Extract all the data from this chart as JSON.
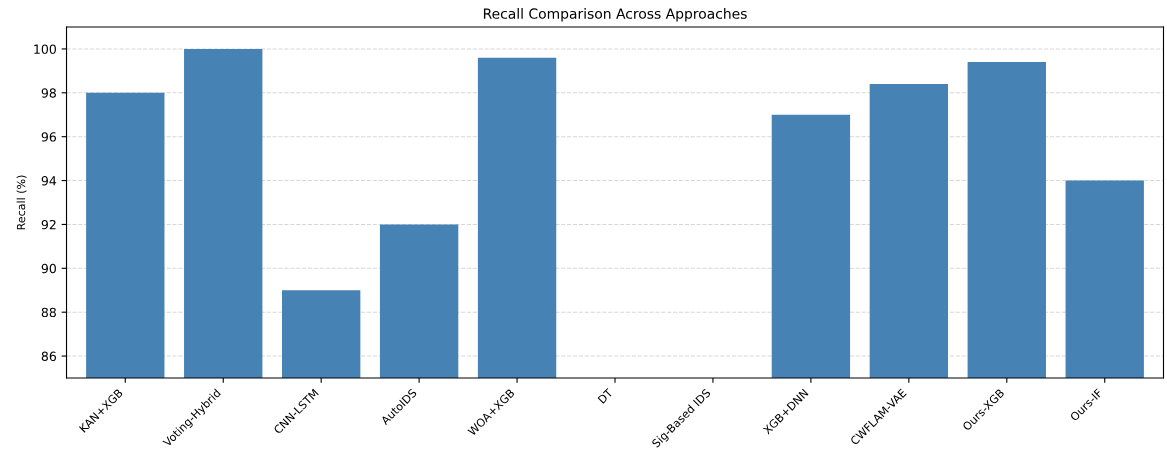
{
  "chart_data": {
    "type": "bar",
    "title": "Recall Comparison Across Approaches",
    "ylabel": "Recall (%)",
    "categories": [
      "KAN+XGB",
      "Voting-Hybrid",
      "CNN-LSTM",
      "AutoIDS",
      "WOA+XGB",
      "DT",
      "Sig-Based IDS",
      "XGB+DNN",
      "CWFLAM-VAE",
      "Ours-XGB",
      "Ours-IF"
    ],
    "values": [
      98,
      100,
      89,
      92,
      99.6,
      null,
      null,
      97,
      98.4,
      99.4,
      94
    ],
    "color": "#4682b4",
    "ylim": [
      85,
      101
    ],
    "yticks": [
      86,
      88,
      90,
      92,
      94,
      96,
      98,
      100
    ],
    "grid": "y"
  }
}
